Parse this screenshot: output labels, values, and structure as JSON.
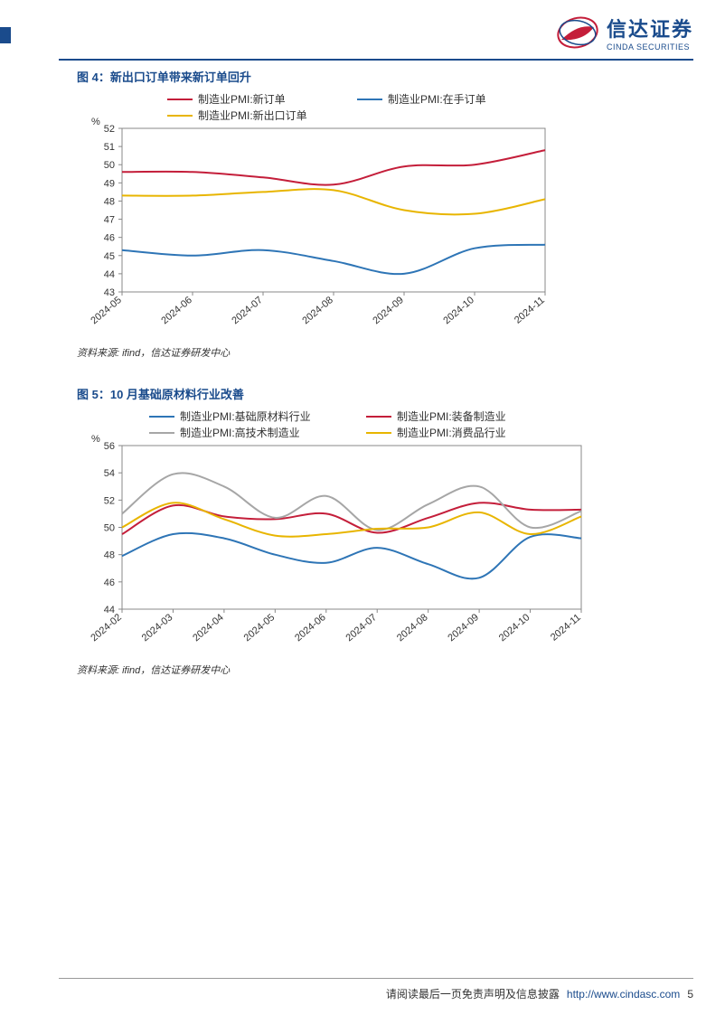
{
  "brand": {
    "name_cn": "信达证券",
    "name_en": "CINDA SECURITIES",
    "logo_colors": {
      "red": "#c41e3a",
      "blue": "#1a4b8c"
    }
  },
  "chart4": {
    "title": "图 4：新出口订单带来新订单回升",
    "type": "line",
    "y_unit": "%",
    "categories": [
      "2024-05",
      "2024-06",
      "2024-07",
      "2024-08",
      "2024-09",
      "2024-10",
      "2024-11"
    ],
    "series": [
      {
        "name": "制造业PMI:新订单",
        "color": "#c41e3a",
        "values": [
          49.6,
          49.6,
          49.3,
          48.9,
          49.9,
          50.0,
          50.8
        ]
      },
      {
        "name": "制造业PMI:在手订单",
        "color": "#2e75b6",
        "values": [
          45.3,
          45.0,
          45.3,
          44.7,
          44.0,
          45.4,
          45.6
        ]
      },
      {
        "name": "制造业PMI:新出口订单",
        "color": "#e8b500",
        "values": [
          48.3,
          48.3,
          48.5,
          48.6,
          47.5,
          47.3,
          48.1
        ]
      }
    ],
    "ylim": [
      43,
      52
    ],
    "ytick_step": 1,
    "plot_bg": "#ffffff",
    "border_color": "#1a4b8c",
    "line_width": 2,
    "title_fontsize": 13,
    "source": "资料来源: ifind，信达证券研发中心"
  },
  "chart5": {
    "title": "图 5：10 月基础原材料行业改善",
    "type": "line",
    "y_unit": "%",
    "categories": [
      "2024-02",
      "2024-03",
      "2024-04",
      "2024-05",
      "2024-06",
      "2024-07",
      "2024-08",
      "2024-09",
      "2024-10",
      "2024-11"
    ],
    "series": [
      {
        "name": "制造业PMI:基础原材料行业",
        "color": "#2e75b6",
        "values": [
          47.9,
          49.5,
          49.2,
          48.0,
          47.4,
          48.5,
          47.3,
          46.3,
          49.3,
          49.2
        ]
      },
      {
        "name": "制造业PMI:装备制造业",
        "color": "#c41e3a",
        "values": [
          49.5,
          51.6,
          50.8,
          50.6,
          51.0,
          49.6,
          50.7,
          51.8,
          51.3,
          51.3
        ]
      },
      {
        "name": "制造业PMI:高技术制造业",
        "color": "#a6a6a6",
        "values": [
          51.0,
          53.9,
          53.0,
          50.7,
          52.3,
          49.8,
          51.7,
          53.0,
          50.0,
          51.2
        ]
      },
      {
        "name": "制造业PMI:消费品行业",
        "color": "#e8b500",
        "values": [
          50.0,
          51.8,
          50.6,
          49.4,
          49.5,
          49.9,
          50.0,
          51.1,
          49.5,
          50.8
        ]
      }
    ],
    "ylim": [
      44,
      56
    ],
    "ytick_step": 2,
    "plot_bg": "#ffffff",
    "border_color": "#1a4b8c",
    "line_width": 2,
    "title_fontsize": 13,
    "source": "资料来源: ifind，信达证券研发中心"
  },
  "footer": {
    "disclaimer": "请阅读最后一页免责声明及信息披露",
    "url": "http://www.cindasc.com",
    "page": "5"
  }
}
